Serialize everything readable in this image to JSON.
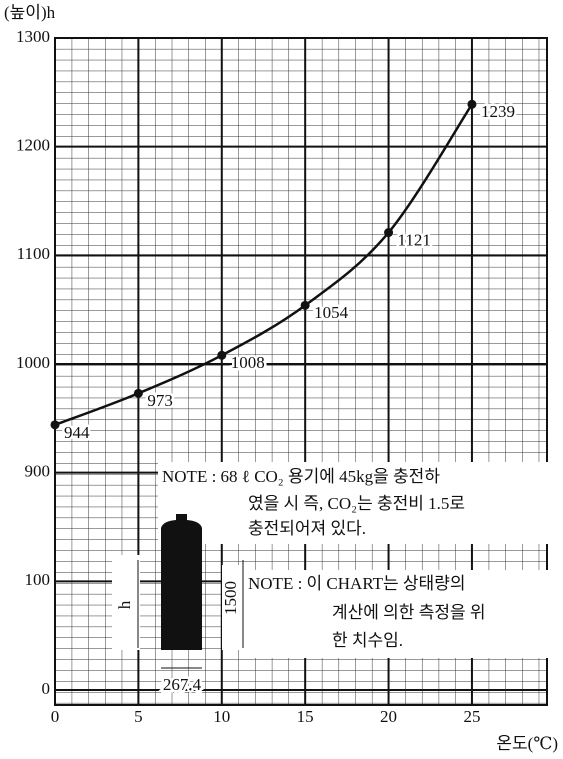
{
  "chart_data": {
    "type": "line",
    "y_label": "(높이)h",
    "x_label": "온도(℃)",
    "x": [
      0,
      5,
      10,
      15,
      20,
      25
    ],
    "values": [
      944,
      973,
      1008,
      1054,
      1121,
      1239
    ],
    "color": "#111111",
    "xlim": [
      0,
      29.5
    ],
    "xticks": [
      0,
      5,
      10,
      15,
      20,
      25
    ],
    "ylim": [
      0,
      1300
    ],
    "yticks": [
      0,
      100,
      900,
      1000,
      1100,
      1200,
      1300
    ],
    "grid": true,
    "annotations": {
      "note1": [
        "NOTE : 68 ℓ CO₂ 용기에 45kg을 충전하",
        "였을 시 즉, CO₂는 충전비 1.5로",
        "충전되어져 있다."
      ],
      "note2": [
        "NOTE : 이 CHART는 상태량의",
        "계산에 의한 측정을 위",
        "한 치수임."
      ],
      "cylinder": {
        "height": "h",
        "length": "1500",
        "diameter": "267.4"
      }
    }
  }
}
